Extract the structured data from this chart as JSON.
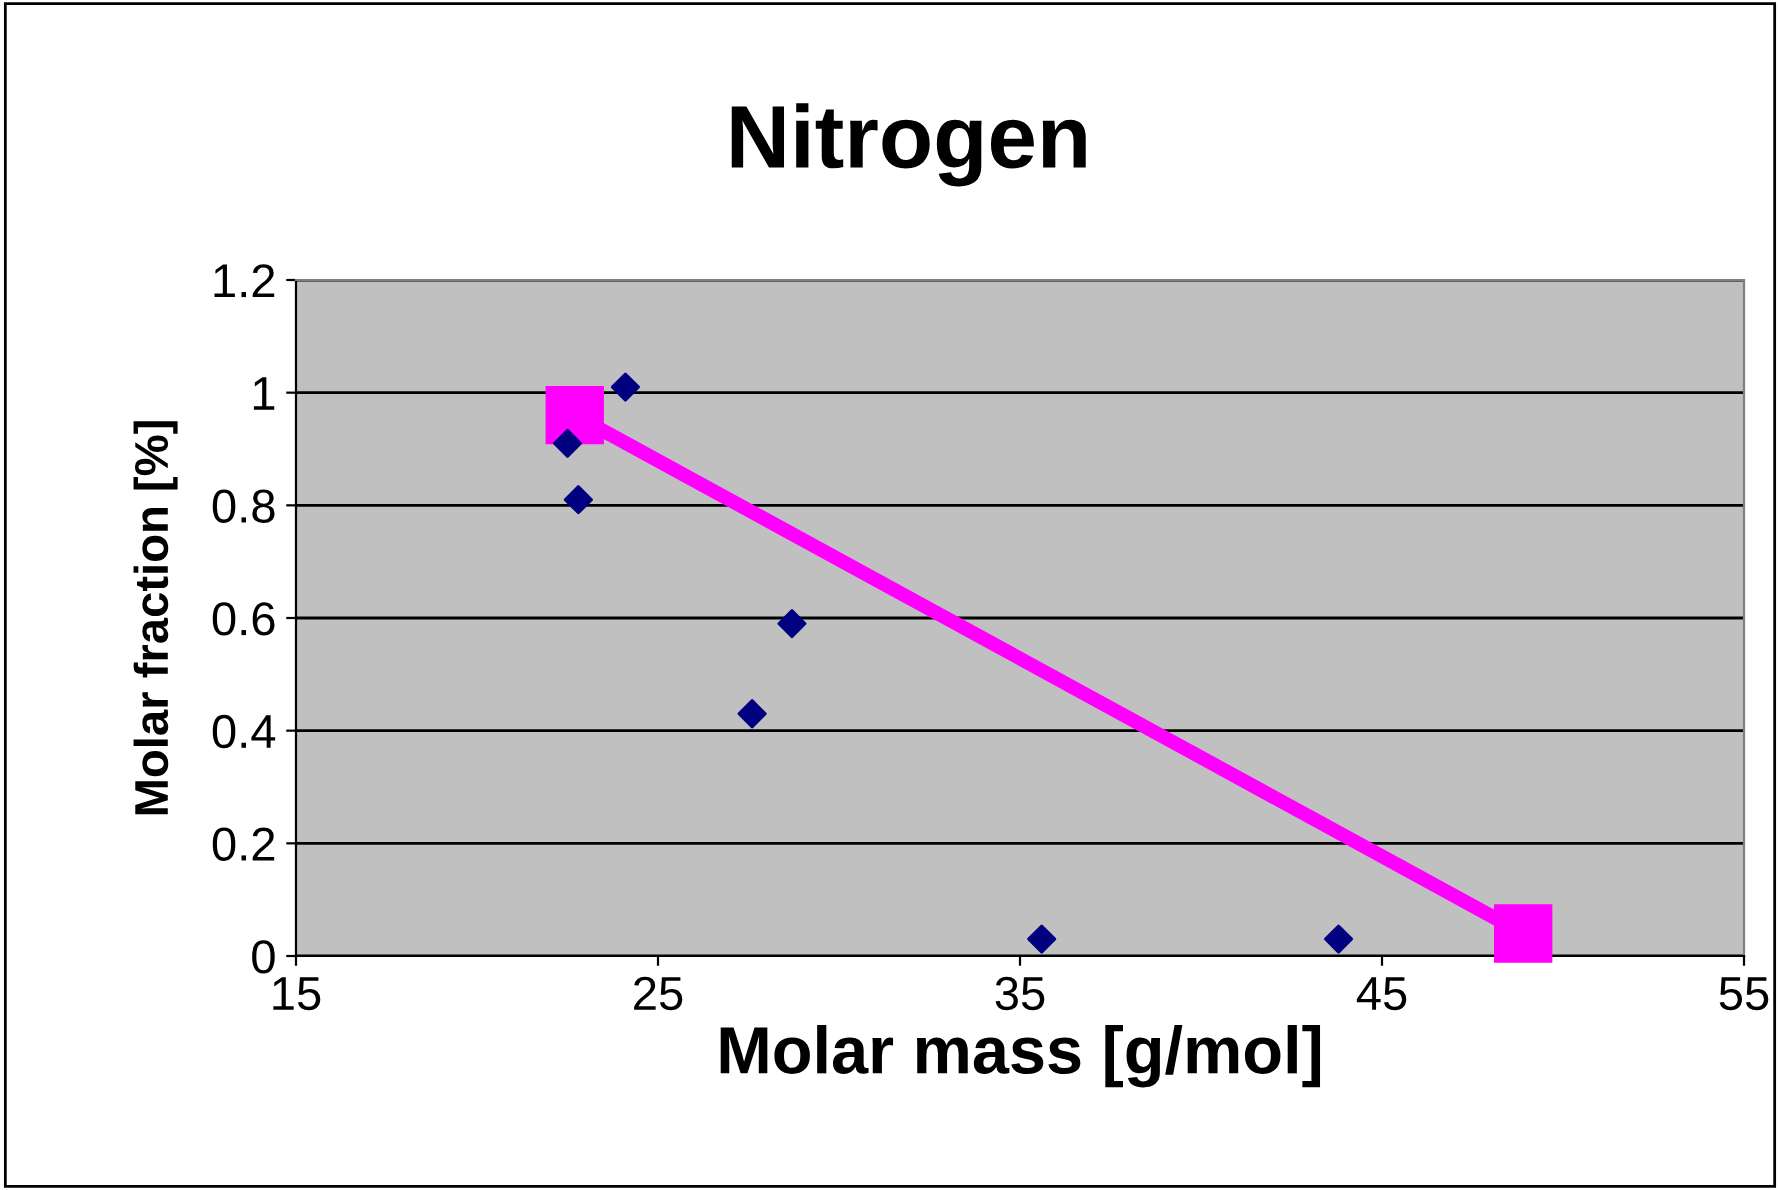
{
  "chart_data": {
    "type": "scatter",
    "title": "Nitrogen",
    "xlabel": "Molar mass [g/mol]",
    "ylabel": "Molar fraction [%]",
    "xlim": [
      15,
      55
    ],
    "xticks": [
      15,
      25,
      35,
      45,
      55
    ],
    "ylim": [
      0,
      1.2
    ],
    "yticks": [
      0,
      0.2,
      0.4,
      0.6,
      0.8,
      1,
      1.2
    ],
    "grid": "y",
    "legend": false,
    "series": [
      {
        "color": "#000080",
        "marker": "diamond",
        "x": [
          22.5,
          22.8,
          24.1,
          27.6,
          28.7,
          35.6,
          43.8
        ],
        "values": [
          0.91,
          0.81,
          1.01,
          0.43,
          0.59,
          0.03,
          0.03
        ]
      },
      {
        "type": "line",
        "color": "#ff00ff",
        "marker": "square",
        "line_style": "solid",
        "x": [
          22.7,
          48.9
        ],
        "values": [
          0.96,
          0.04
        ]
      }
    ]
  }
}
